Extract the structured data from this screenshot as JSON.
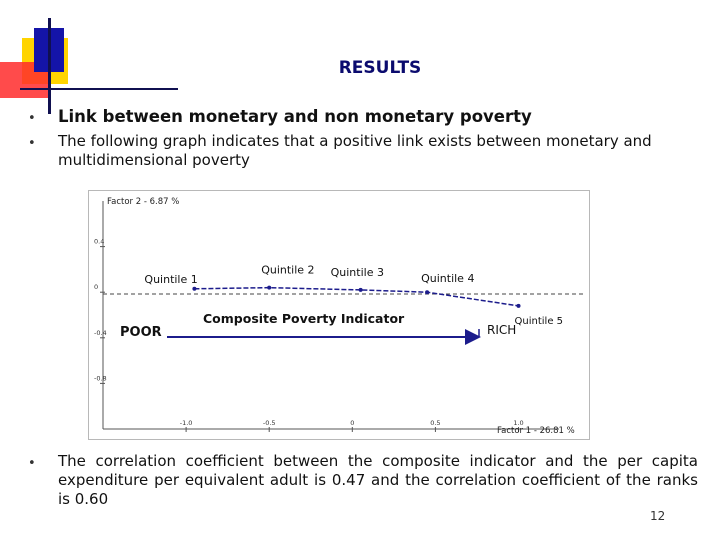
{
  "slide": {
    "title": "RESULTS",
    "page_number": "12",
    "accent_colors": {
      "yellow": "#ffd400",
      "red": "#ff2b2b",
      "blue": "#1414a8",
      "navy_line": "#101050",
      "arrow": "#1c1c8c"
    }
  },
  "bullets": [
    {
      "marker": "•",
      "text": "Link between monetary and non monetary poverty"
    },
    {
      "marker": "•",
      "text": "The following graph indicates that a positive link exists between monetary and multidimensional poverty"
    },
    {
      "marker": "•",
      "text": "The correlation coefficient between the composite indicator and the per capita expenditure per equivalent adult is 0.47 and the correlation coefficient of the ranks is 0.60"
    }
  ],
  "chart_data": {
    "type": "line",
    "y_axis_title": "Factor 2 - 6.87 %",
    "x_axis_title": "Factor 1 - 26.81 %",
    "x_ticks": [
      "-1.0",
      "-0.5",
      "0",
      "0.5",
      "1.0"
    ],
    "y_ticks": [
      "0.4",
      "0",
      "-0.4",
      "-0.8"
    ],
    "xlim": [
      -1.5,
      1.4
    ],
    "ylim": [
      -1.2,
      0.8
    ],
    "grid": false,
    "series": [
      {
        "name": "Composite Poverty Indicator",
        "points": [
          {
            "label": "Quintile 1",
            "x": -0.95,
            "y": 0.03
          },
          {
            "label": "Quintile 2",
            "x": -0.5,
            "y": 0.04
          },
          {
            "label": "Quintile 3",
            "x": 0.05,
            "y": 0.02
          },
          {
            "label": "Quintile 4",
            "x": 0.45,
            "y": 0.0
          },
          {
            "label": "Quintile 5",
            "x": 1.0,
            "y": -0.12
          }
        ]
      }
    ],
    "annotations": {
      "poor": "POOR",
      "rich": "RICH",
      "indicator": "Composite Poverty Indicator"
    }
  }
}
